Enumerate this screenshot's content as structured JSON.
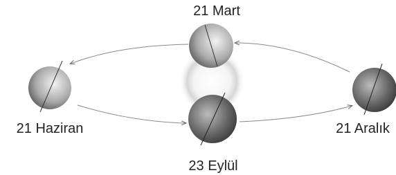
{
  "nodes": [
    {
      "label": "21 Mart"
    },
    {
      "label": "21 Haziran"
    },
    {
      "label": "23 Eylül"
    },
    {
      "label": "21 Aralık"
    }
  ]
}
